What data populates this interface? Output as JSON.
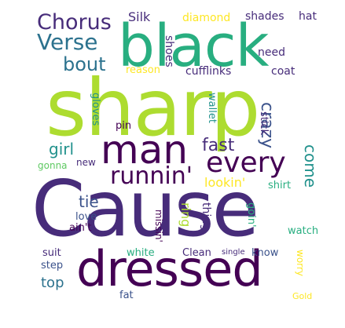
{
  "words": {
    "sharp": "sharp",
    "cause": "Cause",
    "black": "black",
    "dressed": "dressed",
    "man": "man",
    "every": "every",
    "runnin": "runnin'",
    "chorus": "Chorus",
    "verse": "Verse",
    "bout": "bout",
    "fast": "fast",
    "crazy": "crazy",
    "come": "come",
    "girl": "girl",
    "lookin": "lookin'",
    "tie": "tie",
    "ring": "ring",
    "silk": "Silk",
    "diamond": "diamond",
    "shades": "shades",
    "hat": "hat",
    "shoes": "shoes",
    "need": "need",
    "reason": "reason",
    "cufflinks": "cufflinks",
    "coat": "coat",
    "gloves": "gloves",
    "wallet": "wallet",
    "stick": "stick",
    "pin": "pin",
    "gonna": "gonna",
    "new": "new",
    "shirt": "shirt",
    "love": "love",
    "aint": "ain't",
    "missin": "missin'",
    "thing": "thing",
    "goin": "goin'",
    "watch": "watch",
    "suit": "suit",
    "white": "white",
    "clean": "Clean",
    "single": "single",
    "know": "know",
    "worry": "worry",
    "step": "step",
    "top": "top",
    "fat": "fat",
    "gold": "Gold"
  },
  "colors": {
    "dark_purple": "#440154",
    "indigo": "#472c7a",
    "slate_blue": "#3b528b",
    "blue_teal": "#2c728e",
    "teal": "#21918c",
    "green_teal": "#28ae80",
    "green": "#5ec962",
    "lime": "#addc30",
    "yellow": "#fde725"
  }
}
